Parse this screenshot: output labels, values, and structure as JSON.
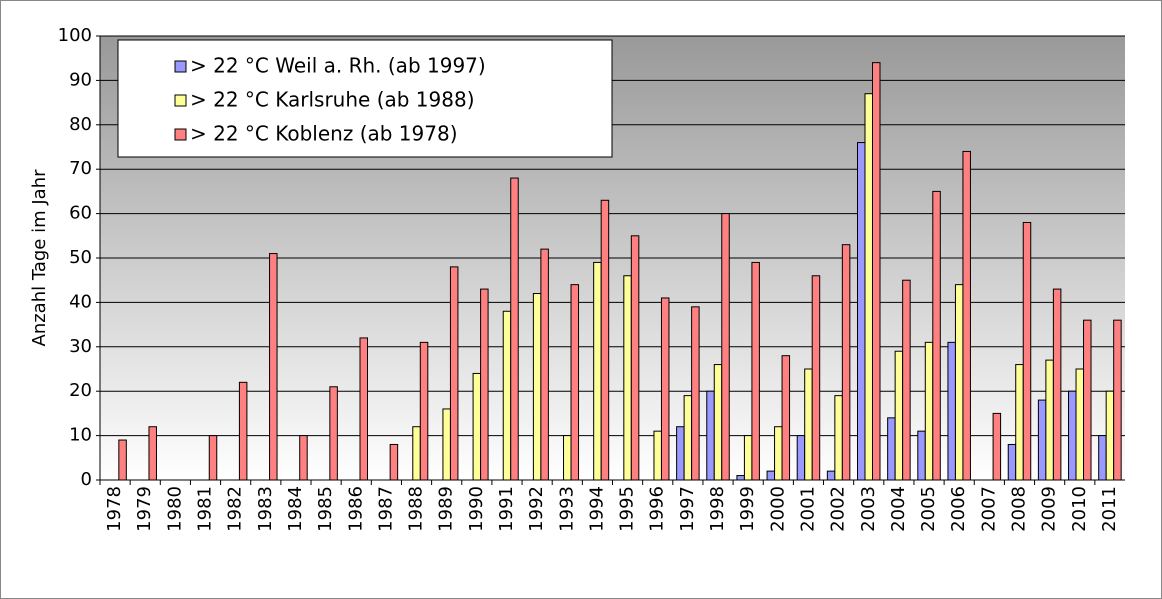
{
  "chart_data": {
    "type": "bar",
    "y_label": "Anzahl Tage im Jahr",
    "categories": [
      "1978",
      "1979",
      "1980",
      "1981",
      "1982",
      "1983",
      "1984",
      "1985",
      "1986",
      "1987",
      "1988",
      "1989",
      "1990",
      "1991",
      "1992",
      "1993",
      "1994",
      "1995",
      "1996",
      "1997",
      "1998",
      "1999",
      "2000",
      "2001",
      "2002",
      "2003",
      "2004",
      "2005",
      "2006",
      "2007",
      "2008",
      "2009",
      "2010",
      "2011"
    ],
    "series": [
      {
        "name": "> 22 °C Weil a. Rh. (ab 1997)",
        "color": "#9999ff",
        "values": [
          null,
          null,
          null,
          null,
          null,
          null,
          null,
          null,
          null,
          null,
          null,
          null,
          null,
          null,
          null,
          null,
          null,
          null,
          null,
          12,
          20,
          1,
          2,
          10,
          2,
          76,
          14,
          11,
          31,
          null,
          8,
          18,
          20,
          10
        ]
      },
      {
        "name": "> 22 °C Karlsruhe (ab 1988)",
        "color": "#ffff99",
        "values": [
          null,
          null,
          null,
          null,
          null,
          null,
          null,
          null,
          null,
          null,
          12,
          16,
          24,
          38,
          42,
          10,
          49,
          46,
          11,
          19,
          26,
          10,
          12,
          25,
          19,
          87,
          29,
          31,
          44,
          null,
          26,
          27,
          25,
          20
        ]
      },
      {
        "name": "> 22 °C Koblenz (ab 1978)",
        "color": "#ff8080",
        "values": [
          9,
          12,
          0,
          10,
          22,
          51,
          10,
          21,
          32,
          8,
          31,
          48,
          43,
          68,
          52,
          44,
          63,
          55,
          41,
          39,
          60,
          49,
          28,
          46,
          53,
          94,
          45,
          65,
          74,
          15,
          58,
          43,
          36,
          36
        ]
      }
    ],
    "ylim": [
      0,
      100
    ],
    "yticks": [
      0,
      10,
      20,
      30,
      40,
      50,
      60,
      70,
      80,
      90,
      100
    ],
    "grid": true,
    "legend": "upper left"
  }
}
